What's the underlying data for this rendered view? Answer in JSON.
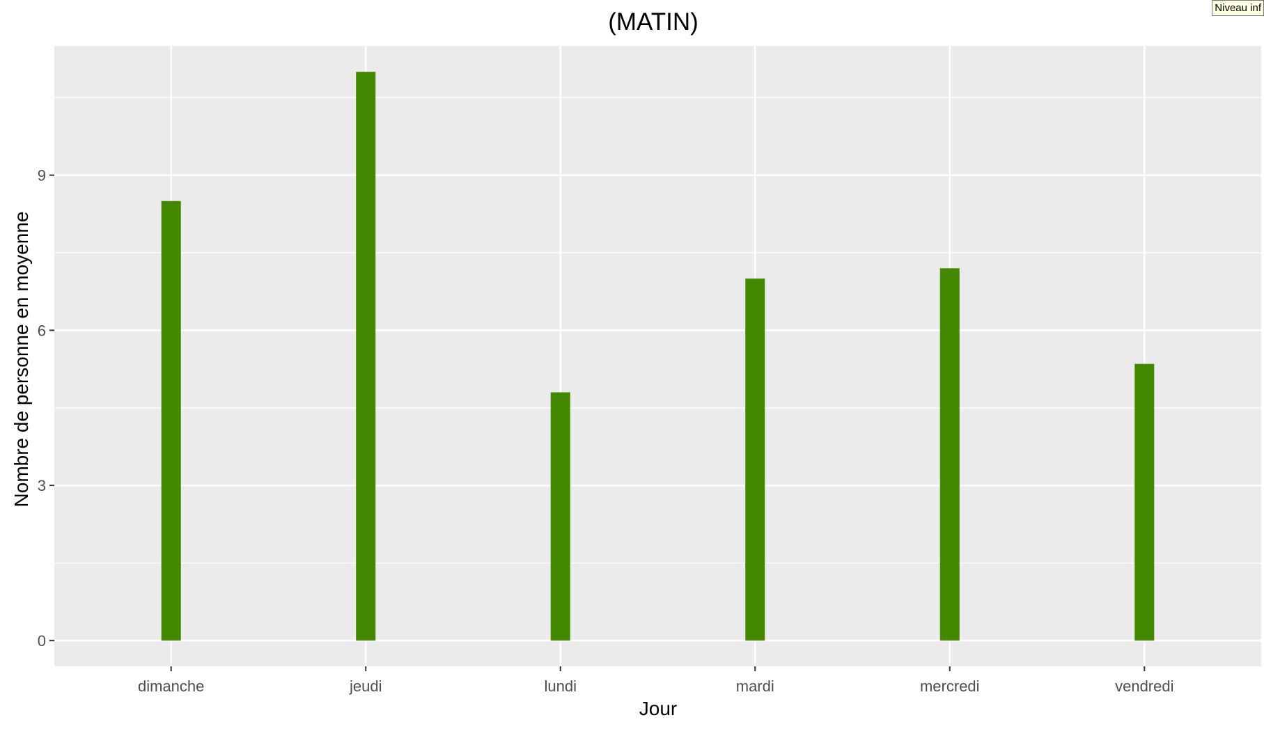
{
  "tooltip": "Niveau inf",
  "chart_data": {
    "type": "bar",
    "title": "(MATIN)",
    "xlabel": "Jour",
    "ylabel": "Nombre de personne en moyenne",
    "categories": [
      "dimanche",
      "jeudi",
      "lundi",
      "mardi",
      "mercredi",
      "vendredi"
    ],
    "values": [
      8.5,
      11.0,
      4.8,
      7.0,
      7.2,
      5.35
    ],
    "ylim": [
      -0.5,
      11.5
    ],
    "yticks": [
      0,
      3,
      6,
      9
    ],
    "grid": true,
    "colors": {
      "bar": "#448800",
      "panel": "#ebebeb",
      "grid": "#ffffff",
      "tick_text": "#4d4d4d"
    }
  }
}
